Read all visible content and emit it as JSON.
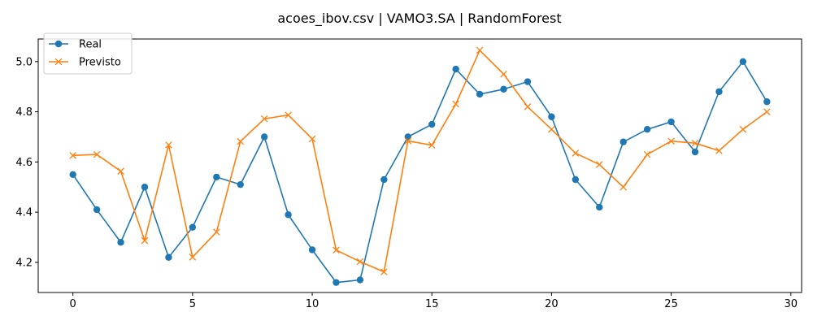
{
  "chart_data": {
    "type": "line",
    "title": "acoes_ibov.csv | VAMO3.SA | RandomForest",
    "xlabel": "",
    "ylabel": "",
    "x": [
      0,
      1,
      2,
      3,
      4,
      5,
      6,
      7,
      8,
      9,
      10,
      11,
      12,
      13,
      14,
      15,
      16,
      17,
      18,
      19,
      20,
      21,
      22,
      23,
      24,
      25,
      26,
      27,
      28,
      29
    ],
    "xlim": [
      -1.45,
      30.45
    ],
    "ylim": [
      4.08,
      5.09
    ],
    "xticks": [
      0,
      5,
      10,
      15,
      20,
      25,
      30
    ],
    "xtick_labels": [
      "0",
      "5",
      "10",
      "15",
      "20",
      "25",
      "30"
    ],
    "yticks": [
      4.2,
      4.4,
      4.6,
      4.8,
      5.0
    ],
    "ytick_labels": [
      "4.2",
      "4.4",
      "4.6",
      "4.8",
      "5.0"
    ],
    "grid": false,
    "legend_position": "top-left",
    "series": [
      {
        "name": "Real",
        "color": "#1f77b4",
        "marker": "circle",
        "values": [
          4.55,
          4.41,
          4.28,
          4.5,
          4.22,
          4.34,
          4.54,
          4.51,
          4.7,
          4.39,
          4.25,
          4.12,
          4.13,
          4.53,
          4.7,
          4.75,
          4.97,
          4.87,
          4.89,
          4.92,
          4.78,
          4.53,
          4.42,
          4.68,
          4.73,
          4.76,
          4.64,
          4.88,
          5.0,
          4.84
        ]
      },
      {
        "name": "Previsto",
        "color": "#ff7f0e",
        "marker": "x",
        "values": [
          4.626,
          4.63,
          4.563,
          4.287,
          4.668,
          4.221,
          4.321,
          4.682,
          4.772,
          4.787,
          4.692,
          4.249,
          4.203,
          4.162,
          4.684,
          4.667,
          4.831,
          5.045,
          4.95,
          4.82,
          4.73,
          4.635,
          4.59,
          4.5,
          4.63,
          4.683,
          4.675,
          4.645,
          4.73,
          4.8
        ]
      }
    ]
  }
}
